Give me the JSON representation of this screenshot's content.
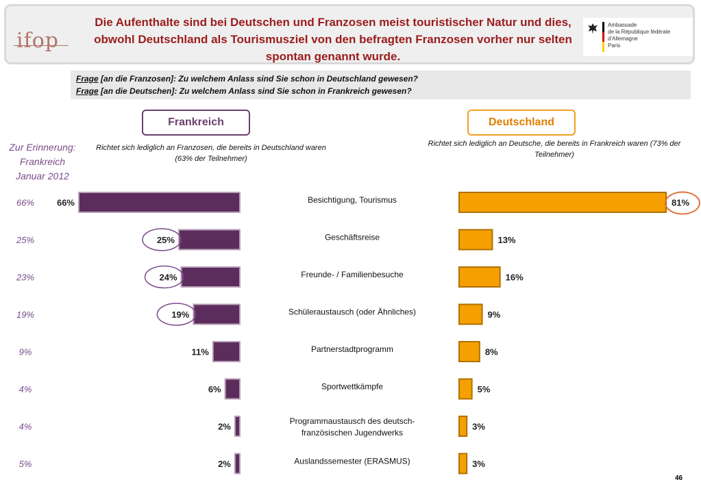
{
  "header": {
    "logo": "ifop",
    "title": "Die Aufenthalte sind bei Deutschen und Franzosen meist touristischer Natur und dies, obwohl Deutschland als Tourismusziel von den befragten Franzosen vorher nur selten spontan genannt wurde.",
    "embassy_lines": [
      "Ambassade",
      "de la République fédérale d'Allemagne",
      "Paris"
    ]
  },
  "question": {
    "frage_word": "Frage",
    "line1": " [an die Franzosen]: Zu welchem Anlass sind Sie schon in Deutschland gewesen?",
    "line2": " [an die Deutschen]: Zu welchem Anlass sind Sie schon in Frankreich gewesen?"
  },
  "tabs": {
    "left": "Frankreich",
    "right": "Deutschland"
  },
  "reminder": {
    "line1": "Zur Erinnerung:",
    "line2": "Frankreich",
    "line3": "Januar 2012"
  },
  "notes": {
    "left": "Richtet sich lediglich an Franzosen, die bereits in Deutschland waren (63% der Teilnehmer)",
    "right": "Richtet sich lediglich an Deutsche, die bereits in Frankreich waren (73% der Teilnehmer)"
  },
  "page_number": "46",
  "colors": {
    "frankreich": "#5c2d5c",
    "deutschland": "#f5a000",
    "title": "#9b1c1c",
    "circle_fr": "#7a4a8c",
    "circle_de": "#e0703a"
  },
  "chart_data": {
    "type": "bar",
    "orientation": "horizontal",
    "categories": [
      "Besichtigung, Tourismus",
      "Geschäftsreise",
      "Freunde- / Familienbesuche",
      "Schüleraustausch (oder Ähnliches)",
      "Partnerstadtprogramm",
      "Sportwettkämpfe",
      "Programmaustausch des deutsch-französischen Jugendwerks",
      "Auslandssemester (ERASMUS)"
    ],
    "category_lines": [
      [
        "Besichtigung, Tourismus"
      ],
      [
        "Geschäftsreise"
      ],
      [
        "Freunde- / Familienbesuche"
      ],
      [
        "Schüleraustausch (oder Ähnliches)"
      ],
      [
        "Partnerstadtprogramm"
      ],
      [
        "Sportwettkämpfe"
      ],
      [
        "Programmaustausch des deutsch-",
        "französischen Jugendwerks"
      ],
      [
        "Auslandssemester (ERASMUS)"
      ]
    ],
    "series": [
      {
        "name": "Frankreich",
        "values": [
          66,
          25,
          24,
          19,
          11,
          6,
          2,
          2
        ],
        "labels": [
          "66%",
          "25%",
          "24%",
          "19%",
          "11%",
          "6%",
          "2%",
          "2%"
        ],
        "circled": [
          false,
          true,
          true,
          true,
          false,
          false,
          false,
          false
        ]
      },
      {
        "name": "Deutschland",
        "values": [
          81,
          13,
          16,
          9,
          8,
          5,
          3,
          3
        ],
        "labels": [
          "81%",
          "13%",
          "16%",
          "9%",
          "8%",
          "5%",
          "3%",
          "3%"
        ],
        "circled": [
          true,
          false,
          false,
          false,
          false,
          false,
          false,
          false
        ]
      },
      {
        "name": "Zur Erinnerung: Frankreich Januar 2012",
        "values": [
          66,
          25,
          23,
          19,
          9,
          4,
          4,
          5
        ],
        "labels": [
          "66%",
          "25%",
          "23%",
          "19%",
          "9%",
          "4%",
          "4%",
          "5%"
        ]
      }
    ],
    "xlim": [
      0,
      100
    ]
  }
}
